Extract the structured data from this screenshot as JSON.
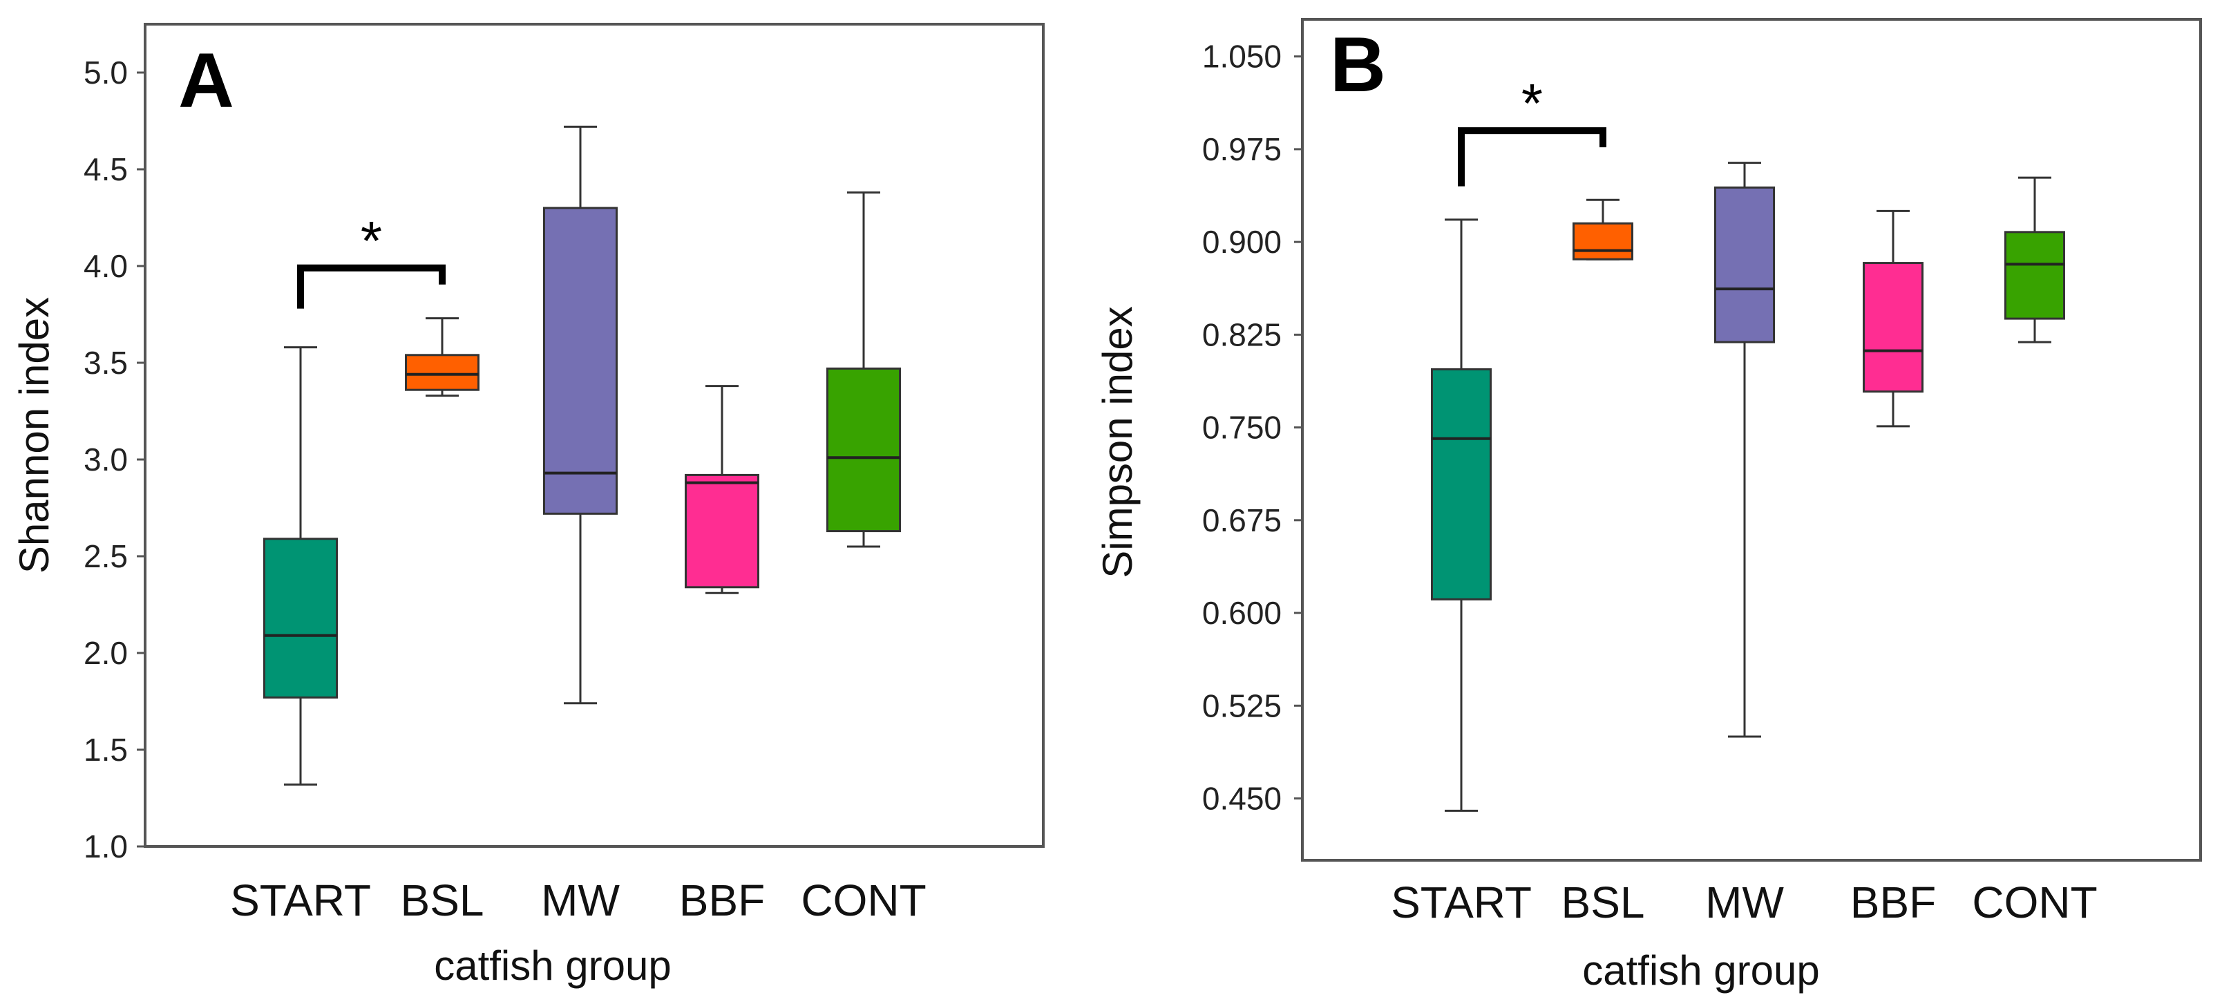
{
  "chart_data": [
    {
      "type": "boxplot",
      "panel_label": "A",
      "ylabel": "Shannon index",
      "xlabel": "catfish group",
      "ylim": [
        1.0,
        5.25
      ],
      "yticks": [
        "1.0",
        "1.5",
        "2.0",
        "2.5",
        "3.0",
        "3.5",
        "4.0",
        "4.5",
        "5.0"
      ],
      "categories": [
        "START",
        "BSL",
        "MW",
        "BBF",
        "CONT"
      ],
      "boxes": [
        {
          "group": "START",
          "min": 1.32,
          "q1": 1.77,
          "median": 2.09,
          "q3": 2.59,
          "max": 3.58,
          "color": "#009473"
        },
        {
          "group": "BSL",
          "min": 3.33,
          "q1": 3.36,
          "median": 3.44,
          "q3": 3.54,
          "max": 3.73,
          "color": "#FF6000"
        },
        {
          "group": "MW",
          "min": 1.74,
          "q1": 2.72,
          "median": 2.93,
          "q3": 4.3,
          "max": 4.72,
          "color": "#7570B3"
        },
        {
          "group": "BBF",
          "min": 2.31,
          "q1": 2.34,
          "median": 2.88,
          "q3": 2.92,
          "max": 3.38,
          "color": "#FF2D92"
        },
        {
          "group": "CONT",
          "min": 2.55,
          "q1": 2.63,
          "median": 3.01,
          "q3": 3.47,
          "max": 4.38,
          "color": "#38A300"
        }
      ],
      "significance": {
        "from": "START",
        "to": "BSL",
        "label": "*",
        "bracket_value": 3.99,
        "leg_value": 3.78
      }
    },
    {
      "type": "boxplot",
      "panel_label": "B",
      "ylabel": "Simpson index",
      "xlabel": "catfish group",
      "ylim": [
        0.4,
        1.08
      ],
      "yticks": [
        "0.450",
        "0.525",
        "0.600",
        "0.675",
        "0.750",
        "0.825",
        "0.900",
        "0.975",
        "1.050"
      ],
      "categories": [
        "START",
        "BSL",
        "MW",
        "BBF",
        "CONT"
      ],
      "boxes": [
        {
          "group": "START",
          "min": 0.44,
          "q1": 0.611,
          "median": 0.741,
          "q3": 0.797,
          "max": 0.918,
          "color": "#009473"
        },
        {
          "group": "BSL",
          "min": 0.886,
          "q1": 0.886,
          "median": 0.893,
          "q3": 0.915,
          "max": 0.934,
          "color": "#FF6000"
        },
        {
          "group": "MW",
          "min": 0.5,
          "q1": 0.819,
          "median": 0.862,
          "q3": 0.944,
          "max": 0.964,
          "color": "#7570B3"
        },
        {
          "group": "BBF",
          "min": 0.751,
          "q1": 0.779,
          "median": 0.812,
          "q3": 0.883,
          "max": 0.925,
          "color": "#FF2D92"
        },
        {
          "group": "CONT",
          "min": 0.819,
          "q1": 0.838,
          "median": 0.882,
          "q3": 0.908,
          "max": 0.952,
          "color": "#38A300"
        }
      ],
      "significance": {
        "from": "START",
        "to": "BSL",
        "label": "*",
        "bracket_value": 0.99,
        "leg_value": 0.945
      }
    }
  ]
}
